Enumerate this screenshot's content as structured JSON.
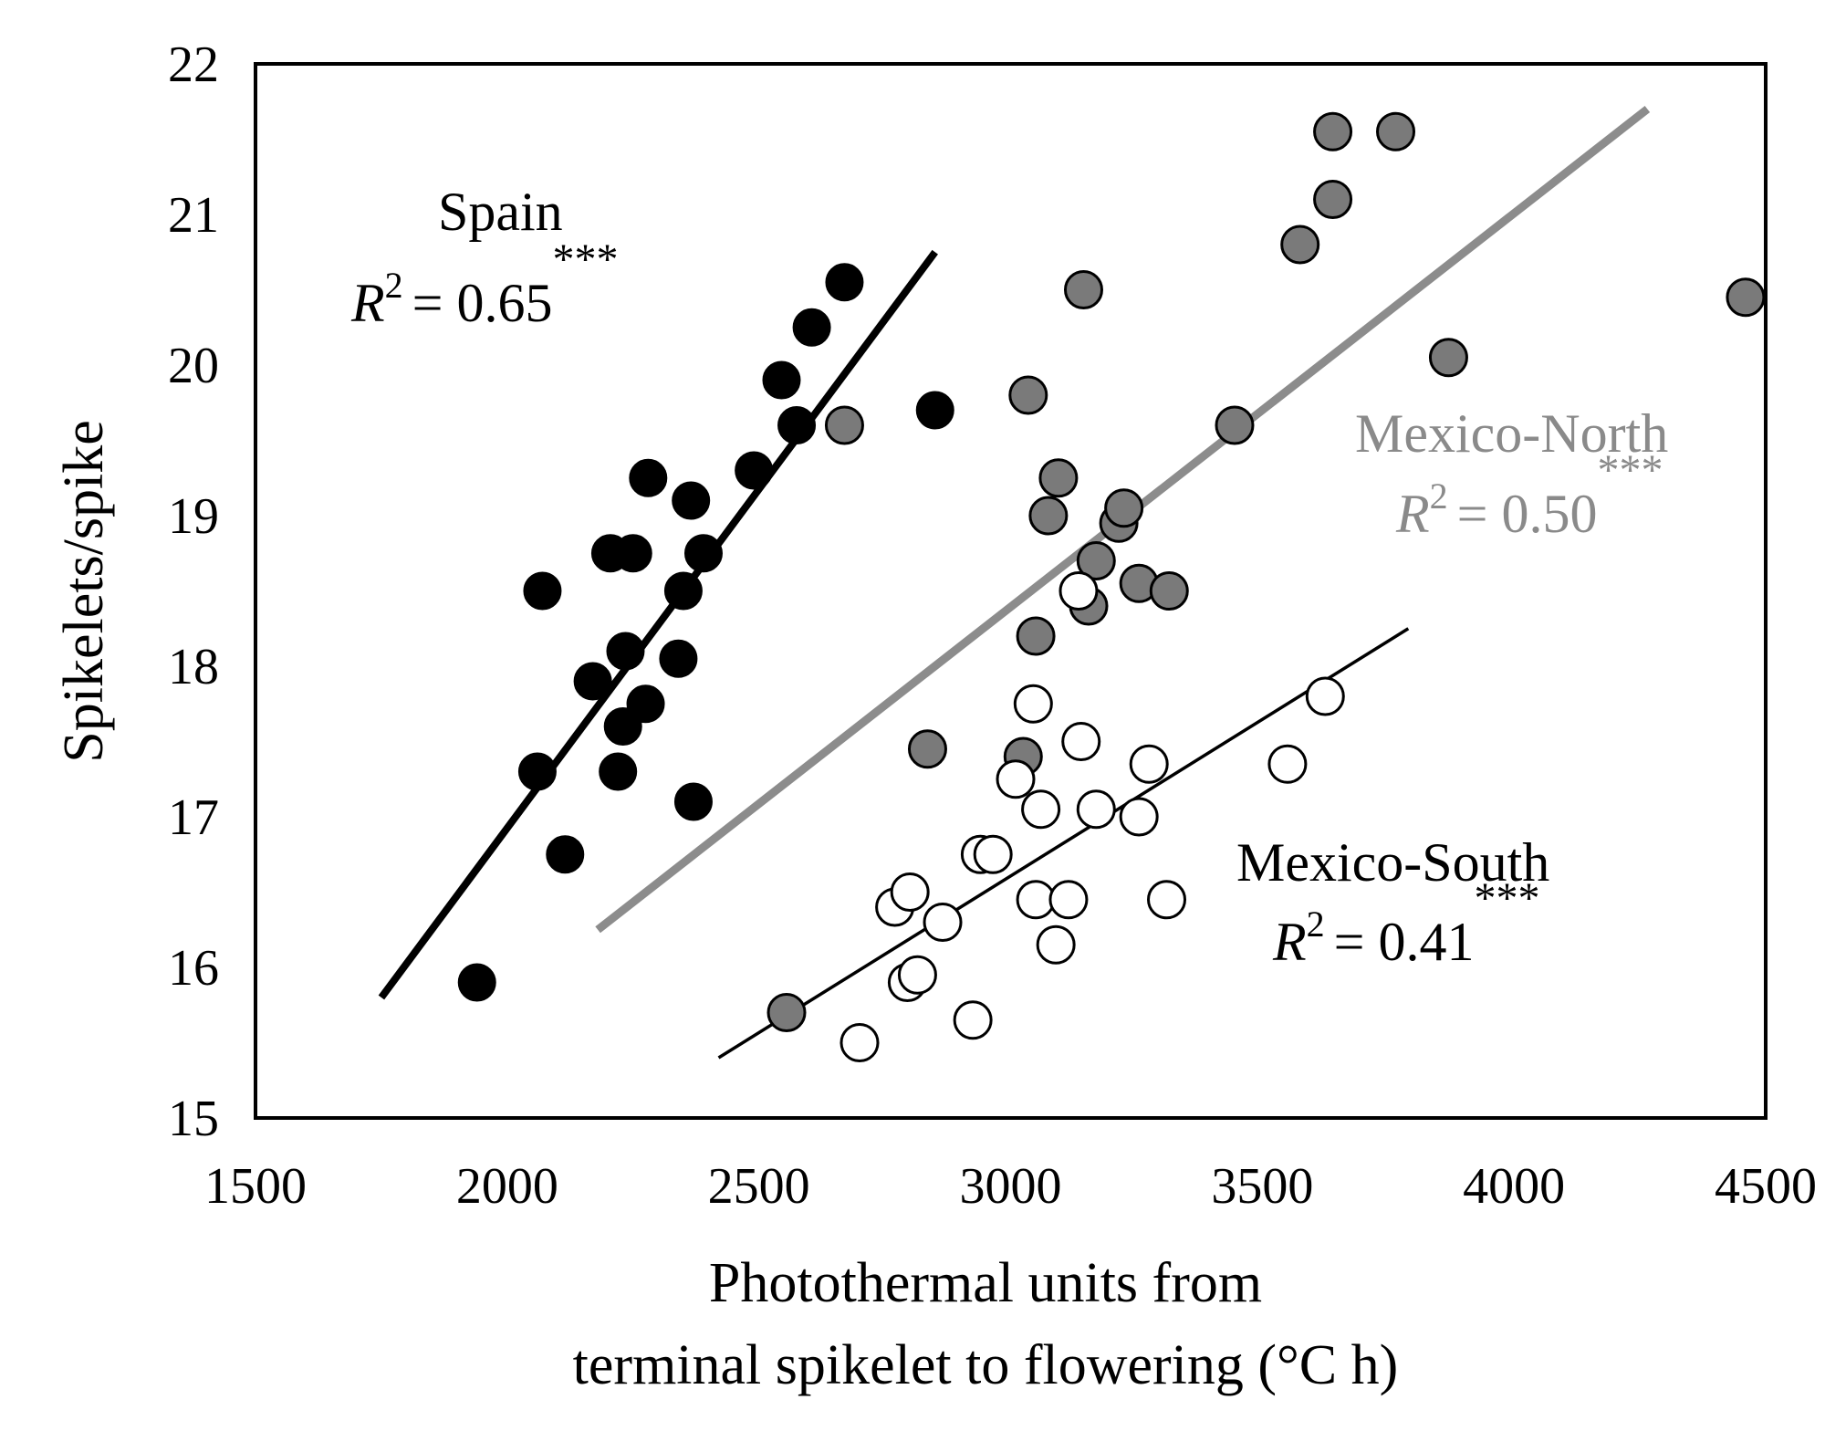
{
  "chart_data": {
    "type": "scatter",
    "title": "",
    "xlabel_line1": "Photothermal units from",
    "xlabel_line2": "terminal spikelet to flowering (°C h)",
    "ylabel": "Spikelets/spike",
    "xlim": [
      1500,
      4500
    ],
    "ylim": [
      15,
      22
    ],
    "xticks": [
      1500,
      2000,
      2500,
      3000,
      3500,
      4000,
      4500
    ],
    "yticks": [
      15,
      16,
      17,
      18,
      19,
      20,
      21,
      22
    ],
    "grid": false,
    "series": [
      {
        "name": "Spain",
        "marker": "filled-black",
        "color": "#000000",
        "r2_label": "R",
        "r2_sup": "2",
        "r2_value": "= 0.65",
        "signif": "***",
        "fit_line": {
          "x": [
            1750,
            2850
          ],
          "y": [
            15.8,
            20.75
          ]
        },
        "points": [
          {
            "x": 1940,
            "y": 15.9
          },
          {
            "x": 2060,
            "y": 17.3
          },
          {
            "x": 2070,
            "y": 18.5
          },
          {
            "x": 2115,
            "y": 16.75
          },
          {
            "x": 2170,
            "y": 17.9
          },
          {
            "x": 2205,
            "y": 18.75
          },
          {
            "x": 2220,
            "y": 17.3
          },
          {
            "x": 2230,
            "y": 17.6
          },
          {
            "x": 2235,
            "y": 18.1
          },
          {
            "x": 2250,
            "y": 18.75
          },
          {
            "x": 2275,
            "y": 17.75
          },
          {
            "x": 2280,
            "y": 19.25
          },
          {
            "x": 2340,
            "y": 18.05
          },
          {
            "x": 2350,
            "y": 18.5
          },
          {
            "x": 2365,
            "y": 19.1
          },
          {
            "x": 2370,
            "y": 17.1
          },
          {
            "x": 2390,
            "y": 18.75
          },
          {
            "x": 2490,
            "y": 19.3
          },
          {
            "x": 2545,
            "y": 19.9
          },
          {
            "x": 2575,
            "y": 19.6
          },
          {
            "x": 2605,
            "y": 20.25
          },
          {
            "x": 2670,
            "y": 20.55
          },
          {
            "x": 2850,
            "y": 19.7
          }
        ]
      },
      {
        "name": "Mexico-North",
        "marker": "filled-gray",
        "color": "#8a8a8a",
        "fill": "#7a7a7a",
        "r2_label": "R",
        "r2_sup": "2",
        "r2_value": "= 0.50",
        "signif": "***",
        "fit_line": {
          "x": [
            2180,
            4265
          ],
          "y": [
            16.25,
            21.7
          ]
        },
        "points": [
          {
            "x": 2555,
            "y": 15.7
          },
          {
            "x": 2670,
            "y": 19.6
          },
          {
            "x": 2835,
            "y": 17.45
          },
          {
            "x": 3025,
            "y": 17.4
          },
          {
            "x": 3035,
            "y": 19.8
          },
          {
            "x": 3050,
            "y": 18.2
          },
          {
            "x": 3075,
            "y": 19.0
          },
          {
            "x": 3095,
            "y": 19.25
          },
          {
            "x": 3145,
            "y": 20.5
          },
          {
            "x": 3155,
            "y": 18.4
          },
          {
            "x": 3170,
            "y": 18.7
          },
          {
            "x": 3215,
            "y": 18.95
          },
          {
            "x": 3225,
            "y": 19.05
          },
          {
            "x": 3255,
            "y": 18.55
          },
          {
            "x": 3315,
            "y": 18.5
          },
          {
            "x": 3445,
            "y": 19.6
          },
          {
            "x": 3575,
            "y": 20.8
          },
          {
            "x": 3640,
            "y": 21.1
          },
          {
            "x": 3640,
            "y": 21.55
          },
          {
            "x": 3765,
            "y": 21.55
          },
          {
            "x": 3870,
            "y": 20.05
          },
          {
            "x": 4460,
            "y": 20.45
          }
        ]
      },
      {
        "name": "Mexico-South",
        "marker": "open",
        "color": "#000000",
        "r2_label": "R",
        "r2_sup": "2",
        "r2_value": "= 0.41",
        "signif": "***",
        "fit_line": {
          "x": [
            2420,
            3790
          ],
          "y": [
            15.4,
            18.25
          ]
        },
        "points": [
          {
            "x": 2700,
            "y": 15.5
          },
          {
            "x": 2770,
            "y": 16.4
          },
          {
            "x": 2795,
            "y": 15.9
          },
          {
            "x": 2800,
            "y": 16.5
          },
          {
            "x": 2815,
            "y": 15.95
          },
          {
            "x": 2865,
            "y": 16.3
          },
          {
            "x": 2925,
            "y": 15.65
          },
          {
            "x": 2940,
            "y": 16.75
          },
          {
            "x": 2965,
            "y": 16.75
          },
          {
            "x": 3010,
            "y": 17.25
          },
          {
            "x": 3045,
            "y": 17.75
          },
          {
            "x": 3050,
            "y": 16.45
          },
          {
            "x": 3060,
            "y": 17.05
          },
          {
            "x": 3090,
            "y": 16.15
          },
          {
            "x": 3115,
            "y": 16.45
          },
          {
            "x": 3135,
            "y": 18.5
          },
          {
            "x": 3140,
            "y": 17.5
          },
          {
            "x": 3170,
            "y": 17.05
          },
          {
            "x": 3255,
            "y": 17.0
          },
          {
            "x": 3275,
            "y": 17.35
          },
          {
            "x": 3310,
            "y": 16.45
          },
          {
            "x": 3550,
            "y": 17.35
          },
          {
            "x": 3625,
            "y": 17.8
          }
        ]
      }
    ]
  }
}
